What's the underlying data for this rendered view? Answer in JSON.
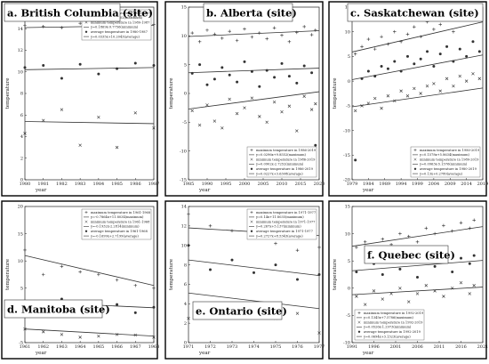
{
  "colors": {
    "frame": "#000000",
    "marker": "#333333",
    "line": "#333333"
  },
  "chart_data": [
    {
      "type": "scatter",
      "title": "a. British Columbia (site)",
      "xlabel": "year",
      "ylabel": "temperature",
      "xlim": [
        1980,
        1987
      ],
      "ylim": [
        0,
        16
      ],
      "xticks": [
        1980,
        1981,
        1982,
        1983,
        1984,
        1985,
        1986,
        1987
      ],
      "yticks": [
        0,
        2,
        4,
        6,
        8,
        10,
        12,
        14,
        16
      ],
      "legend_position": "top-right",
      "legend": [
        "maximum temperature in 1980-1987",
        "y=0.0535x+13.9502(maximum)",
        "minimum temperature in 1980-1987",
        "y=0.1869x-9.7756(minimum)",
        "average temperature in 1980-1987",
        "y=0.0335x+10.2043(average)"
      ],
      "series": [
        {
          "marker": "plus",
          "x": [
            1980,
            1981,
            1982,
            1983,
            1984,
            1985,
            1986,
            1987
          ],
          "values": [
            14.3,
            14.2,
            14.1,
            14.5,
            14.3,
            13.8,
            13.3,
            14.4
          ],
          "trend": [
            14.1,
            14.3
          ]
        },
        {
          "marker": "x",
          "x": [
            1980,
            1981,
            1982,
            1983,
            1984,
            1985,
            1986,
            1987
          ],
          "values": [
            4.3,
            5.5,
            6.5,
            3.2,
            5.8,
            3.0,
            6.2,
            4.8
          ],
          "trend": [
            5.4,
            5.2
          ]
        },
        {
          "marker": "dot",
          "x": [
            1980,
            1981,
            1982,
            1983,
            1984,
            1985,
            1986,
            1987
          ],
          "values": [
            10.4,
            10.6,
            9.4,
            10.7,
            9.8,
            10.3,
            10.8,
            10.6
          ],
          "trend": [
            10.2,
            10.4
          ]
        }
      ]
    },
    {
      "type": "scatter",
      "title": "b. Alberta (site)",
      "xlabel": "year",
      "ylabel": "temperature",
      "xlim": [
        1985,
        2020
      ],
      "ylim": [
        -15,
        15
      ],
      "xticks": [
        1985,
        1990,
        1995,
        2000,
        2005,
        2010,
        2015,
        2020
      ],
      "yticks": [
        -15,
        -10,
        -5,
        0,
        5,
        10,
        15
      ],
      "legend_position": "bottom-right",
      "legend": [
        "maximum temperature in 1986-2019",
        "y=0.0296x+9.8552(maximum)",
        "minimum temperature in 1986-2019",
        "y=0.0902x-2.7252(minimum)",
        "average temperature in 1986-2019",
        "y=0.0227x+3.6308(average)"
      ],
      "series": [
        {
          "marker": "plus",
          "x": [
            1986,
            1988,
            1990,
            1992,
            1994,
            1996,
            1998,
            2000,
            2002,
            2004,
            2006,
            2008,
            2010,
            2012,
            2014,
            2016,
            2018,
            2019
          ],
          "values": [
            10.5,
            9.0,
            11.0,
            10.3,
            9.6,
            10.8,
            9.2,
            11.2,
            9.8,
            10.5,
            9.5,
            11.4,
            10.1,
            9.0,
            10.6,
            11.6,
            10.2,
            11.0
          ],
          "trend": [
            9.9,
            10.9
          ]
        },
        {
          "marker": "x",
          "x": [
            1986,
            1988,
            1990,
            1992,
            1994,
            1996,
            1998,
            2000,
            2002,
            2004,
            2006,
            2008,
            2010,
            2012,
            2014,
            2016,
            2018,
            2019
          ],
          "values": [
            -3.0,
            -5.5,
            -2.0,
            -4.8,
            -6.0,
            -1.0,
            -3.5,
            -2.5,
            -0.8,
            -4.0,
            -5.0,
            -1.5,
            -3.2,
            -2.2,
            -6.5,
            -0.5,
            -2.8,
            -1.8
          ],
          "trend": [
            -2.7,
            0.3
          ]
        },
        {
          "marker": "dot",
          "x": [
            1986,
            1988,
            1990,
            1992,
            1994,
            1996,
            1998,
            2000,
            2002,
            2004,
            2006,
            2008,
            2010,
            2012,
            2014,
            2016,
            2018,
            2019
          ],
          "values": [
            3.5,
            5.0,
            1.5,
            2.5,
            4.5,
            3.2,
            2.0,
            5.5,
            3.8,
            1.2,
            4.0,
            2.8,
            5.2,
            3.0,
            1.8,
            4.8,
            3.6,
            -9.0
          ],
          "trend": [
            3.6,
            4.4
          ]
        }
      ]
    },
    {
      "type": "scatter",
      "title": "c. Saskatchewan (site)",
      "xlabel": "year",
      "ylabel": "temperature",
      "xlim": [
        1979,
        2019
      ],
      "ylim": [
        -20,
        15
      ],
      "xticks": [
        1979,
        1984,
        1989,
        1994,
        1999,
        2004,
        2009,
        2014,
        2019
      ],
      "yticks": [
        -20,
        -15,
        -10,
        -5,
        0,
        5,
        10,
        15
      ],
      "legend_position": "bottom-right",
      "legend": [
        "maximum temperature in 1980-2019",
        "y=0.1578x+5.8634(maximum)",
        "minimum temperature in 1980-2019",
        "y=0.0963x-5.1576(minimum)",
        "average temperature in 1980-2019",
        "y=0.13x+0.2780(average)"
      ],
      "series": [
        {
          "marker": "plus",
          "x": [
            1980,
            1982,
            1984,
            1986,
            1988,
            1990,
            1992,
            1994,
            1996,
            1998,
            2000,
            2002,
            2004,
            2006,
            2008,
            2010,
            2012,
            2014,
            2016,
            2018
          ],
          "values": [
            5.5,
            7.0,
            8.5,
            6.5,
            9.0,
            7.5,
            10.0,
            8.0,
            9.5,
            11.0,
            9.0,
            12.0,
            10.5,
            11.5,
            13.0,
            10.0,
            14.0,
            12.5,
            15.0,
            13.5
          ],
          "trend": [
            5.9,
            12.0
          ]
        },
        {
          "marker": "x",
          "x": [
            1980,
            1982,
            1984,
            1986,
            1988,
            1990,
            1992,
            1994,
            1996,
            1998,
            2000,
            2002,
            2004,
            2006,
            2008,
            2010,
            2012,
            2014,
            2016,
            2018
          ],
          "values": [
            -6.0,
            -5.0,
            -4.5,
            -3.5,
            -5.5,
            -3.0,
            -4.0,
            -2.0,
            -3.0,
            -1.5,
            -2.5,
            -1.0,
            -0.5,
            -2.0,
            0.5,
            -1.0,
            1.0,
            0.0,
            1.5,
            0.5
          ],
          "trend": [
            -5.2,
            -1.4
          ]
        },
        {
          "marker": "dot",
          "x": [
            1980,
            1982,
            1984,
            1986,
            1988,
            1990,
            1992,
            1994,
            1996,
            1998,
            2000,
            2002,
            2004,
            2006,
            2008,
            2010,
            2012,
            2014,
            2016,
            2018
          ],
          "values": [
            -16.0,
            0.5,
            2.0,
            1.0,
            3.0,
            2.5,
            4.0,
            2.0,
            5.0,
            3.5,
            4.5,
            6.0,
            3.0,
            5.5,
            7.0,
            4.0,
            6.5,
            5.0,
            8.0,
            6.0
          ],
          "trend": [
            0.3,
            5.3
          ]
        }
      ]
    },
    {
      "type": "scatter",
      "title": "d. Manitoba (site)",
      "xlabel": "year",
      "ylabel": "temperature",
      "xlim": [
        1961,
        1968
      ],
      "ylim": [
        -5,
        20
      ],
      "xticks": [
        1961,
        1962,
        1963,
        1964,
        1965,
        1966,
        1967,
        1968
      ],
      "yticks": [
        -5,
        0,
        5,
        10,
        15,
        20
      ],
      "legend_position": "top-right",
      "legend": [
        "maximum temperature in 1961-1968",
        "y=-0.7864x+11.8034(maximum)",
        "minimum temperature in 1961-1968",
        "y=-0.1932x-2.2814(minimum)",
        "average temperature in 1961-1968",
        "y=-0.1699x+2.7199(average)"
      ],
      "series": [
        {
          "marker": "plus",
          "x": [
            1961,
            1962,
            1963,
            1964,
            1965,
            1966,
            1967,
            1968
          ],
          "values": [
            12.0,
            7.5,
            9.0,
            8.0,
            7.5,
            6.5,
            5.5,
            5.0
          ],
          "trend": [
            11.0,
            5.5
          ]
        },
        {
          "marker": "x",
          "x": [
            1961,
            1962,
            1963,
            1964,
            1965,
            1966,
            1967,
            1968
          ],
          "values": [
            -2.5,
            -3.0,
            -3.5,
            -4.0,
            -3.8,
            -3.5,
            -3.6,
            -4.0
          ],
          "trend": [
            -2.5,
            -3.8
          ]
        },
        {
          "marker": "dot",
          "x": [
            1961,
            1962,
            1963,
            1964,
            1965,
            1966,
            1967,
            1968
          ],
          "values": [
            2.5,
            2.0,
            3.0,
            1.5,
            1.0,
            2.0,
            0.5,
            1.5
          ],
          "trend": [
            2.5,
            1.4
          ]
        }
      ]
    },
    {
      "type": "scatter",
      "title": "e. Ontario (site)",
      "xlabel": "year",
      "ylabel": "temperature",
      "xlim": [
        1971,
        1977
      ],
      "ylim": [
        0,
        14
      ],
      "xticks": [
        1971,
        1972,
        1973,
        1974,
        1975,
        1976,
        1977
      ],
      "yticks": [
        0,
        2,
        4,
        6,
        8,
        10,
        12,
        14
      ],
      "legend_position": "top-right",
      "legend": [
        "maximum temperature in 1971-1977",
        "y=0.14x+11.8035(maximum)",
        "minimum temperature in 1971-1977",
        "y=0.267x+5.137(minimum)",
        "average temperature in 1971-1977",
        "y=0.2727x+8.5343(average)"
      ],
      "series": [
        {
          "marker": "plus",
          "x": [
            1971,
            1972,
            1973,
            1974,
            1975,
            1976,
            1977
          ],
          "values": [
            13.2,
            12.0,
            11.5,
            10.8,
            10.2,
            9.5,
            9.8
          ],
          "trend": [
            11.8,
            11.0
          ]
        },
        {
          "marker": "x",
          "x": [
            1971,
            1972,
            1973,
            1974,
            1975,
            1976,
            1977
          ],
          "values": [
            2.5,
            3.0,
            4.0,
            3.5,
            2.5,
            3.0,
            1.0
          ],
          "trend": [
            5.1,
            3.5
          ]
        },
        {
          "marker": "dot",
          "x": [
            1971,
            1972,
            1973,
            1974,
            1975,
            1976,
            1977
          ],
          "values": [
            10.0,
            7.5,
            8.5,
            7.2,
            8.0,
            6.5,
            7.0
          ],
          "trend": [
            8.5,
            6.9
          ]
        }
      ]
    },
    {
      "type": "scatter",
      "title": "f. Quebec (site)",
      "xlabel": "year",
      "ylabel": "temperature",
      "xlim": [
        1991,
        2021
      ],
      "ylim": [
        -10,
        15
      ],
      "xticks": [
        1991,
        1996,
        2001,
        2006,
        2011,
        2016,
        2021
      ],
      "yticks": [
        -10,
        -5,
        0,
        5,
        10,
        15
      ],
      "legend_position": "bottom-left",
      "legend": [
        "maximum temperature in 1992-2019",
        "y=0.1345x+7.5786(maximum)",
        "minimum temperature in 1992-2019",
        "y=0.0526x-1.2973(minimum)",
        "average temperature in 1992-2019",
        "y=0.0694x+3.1323(average)"
      ],
      "series": [
        {
          "marker": "plus",
          "x": [
            1992,
            1994,
            1996,
            1998,
            2000,
            2002,
            2004,
            2006,
            2008,
            2010,
            2012,
            2014,
            2016,
            2018,
            2019
          ],
          "values": [
            7.5,
            8.5,
            6.5,
            9.0,
            8.0,
            10.0,
            9.5,
            8.5,
            11.0,
            10.0,
            11.5,
            10.5,
            12.0,
            11.0,
            12.5
          ],
          "trend": [
            7.7,
            11.3
          ]
        },
        {
          "marker": "x",
          "x": [
            1992,
            1994,
            1996,
            1998,
            2000,
            2002,
            2004,
            2006,
            2008,
            2010,
            2012,
            2014,
            2016,
            2018,
            2019
          ],
          "values": [
            -1.5,
            -3.0,
            -0.5,
            -2.0,
            -1.0,
            0.0,
            -2.5,
            -1.0,
            0.5,
            -0.5,
            -1.5,
            0.0,
            1.0,
            -1.0,
            0.5
          ],
          "trend": [
            -1.2,
            0.2
          ]
        },
        {
          "marker": "dot",
          "x": [
            1992,
            1994,
            1996,
            1998,
            2000,
            2002,
            2004,
            2006,
            2008,
            2010,
            2012,
            2014,
            2016,
            2018,
            2019
          ],
          "values": [
            3.0,
            -5.0,
            4.5,
            2.5,
            5.5,
            3.5,
            6.0,
            2.0,
            5.0,
            4.0,
            6.5,
            3.0,
            5.5,
            4.5,
            6.0
          ],
          "trend": [
            3.2,
            5.1
          ]
        }
      ]
    }
  ]
}
